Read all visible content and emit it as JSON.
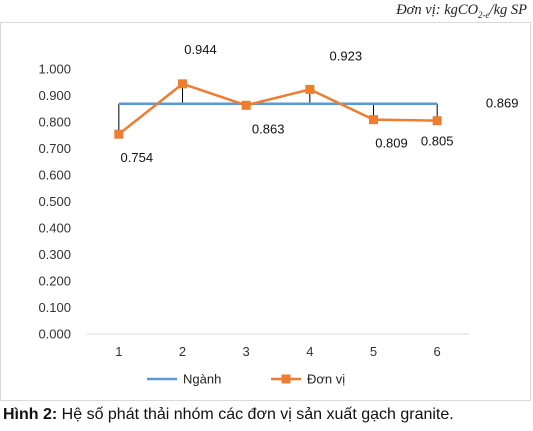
{
  "unit_note": {
    "prefix": "Đơn vị: kgCO",
    "sub": "2-e",
    "suffix": "/kg SP"
  },
  "caption": {
    "label": "Hình 2:",
    "text": " Hệ số phát thải nhóm các đơn vị sản xuất gạch granite."
  },
  "colors": {
    "nganh": "#5b9bd5",
    "don_vi": "#ed7d31",
    "grid": "#d9d9d9",
    "drop_line": "#000000"
  },
  "chart_data": {
    "type": "line",
    "title": "",
    "xlabel": "",
    "ylabel": "",
    "categories": [
      "1",
      "2",
      "3",
      "4",
      "5",
      "6"
    ],
    "ylim": [
      0,
      1
    ],
    "y_ticks": [
      "0.000",
      "0.100",
      "0.200",
      "0.300",
      "0.400",
      "0.500",
      "0.600",
      "0.700",
      "0.800",
      "0.900",
      "1.000"
    ],
    "grid": false,
    "legend_position": "bottom",
    "drop_lines": true,
    "series": [
      {
        "name": "Ngành",
        "marker": "none",
        "values": [
          0.869,
          0.869,
          0.869,
          0.869,
          0.869,
          0.869
        ],
        "labels": [
          "",
          "",
          "",
          "",
          "",
          "0.869"
        ]
      },
      {
        "name": "Đơn vị",
        "marker": "square",
        "values": [
          0.754,
          0.944,
          0.863,
          0.923,
          0.809,
          0.805
        ],
        "labels": [
          "0.754",
          "0.944",
          "0.863",
          "0.923",
          "0.809",
          "0.805"
        ]
      }
    ]
  }
}
